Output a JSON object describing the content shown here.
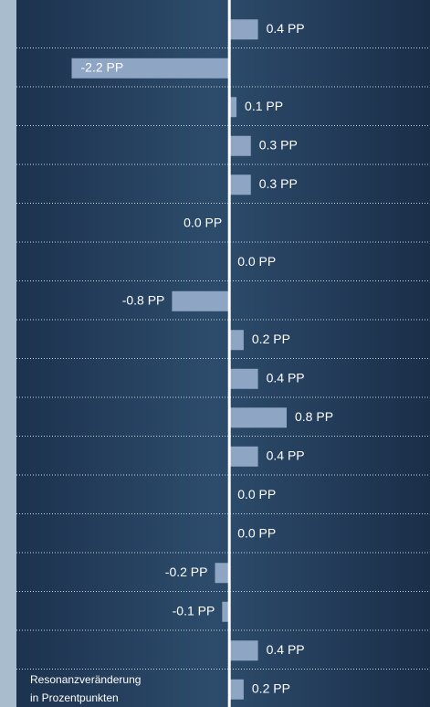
{
  "chart_data": {
    "type": "bar",
    "orientation": "horizontal",
    "values": [
      0.4,
      -2.2,
      0.1,
      0.3,
      0.3,
      -0.0,
      0.0,
      -0.8,
      0.2,
      0.4,
      0.8,
      0.4,
      0.0,
      0.0,
      -0.2,
      -0.1,
      0.4,
      0.2
    ],
    "value_labels": [
      "0.4 PP",
      "-2.2 PP",
      "0.1 PP",
      "0.3 PP",
      "0.3 PP",
      "0.0 PP",
      "0.0 PP",
      "-0.8 PP",
      "0.2 PP",
      "0.4 PP",
      "0.8 PP",
      "0.4 PP",
      "0.0 PP",
      "0.0 PP",
      "-0.2 PP",
      "-0.1 PP",
      "0.4 PP",
      "0.2 PP"
    ],
    "color": "#8ea6c3",
    "xlim": [
      -3.2,
      2.8
    ],
    "note": [
      "Resonanzveränderung",
      "in Prozentpunkten"
    ]
  }
}
